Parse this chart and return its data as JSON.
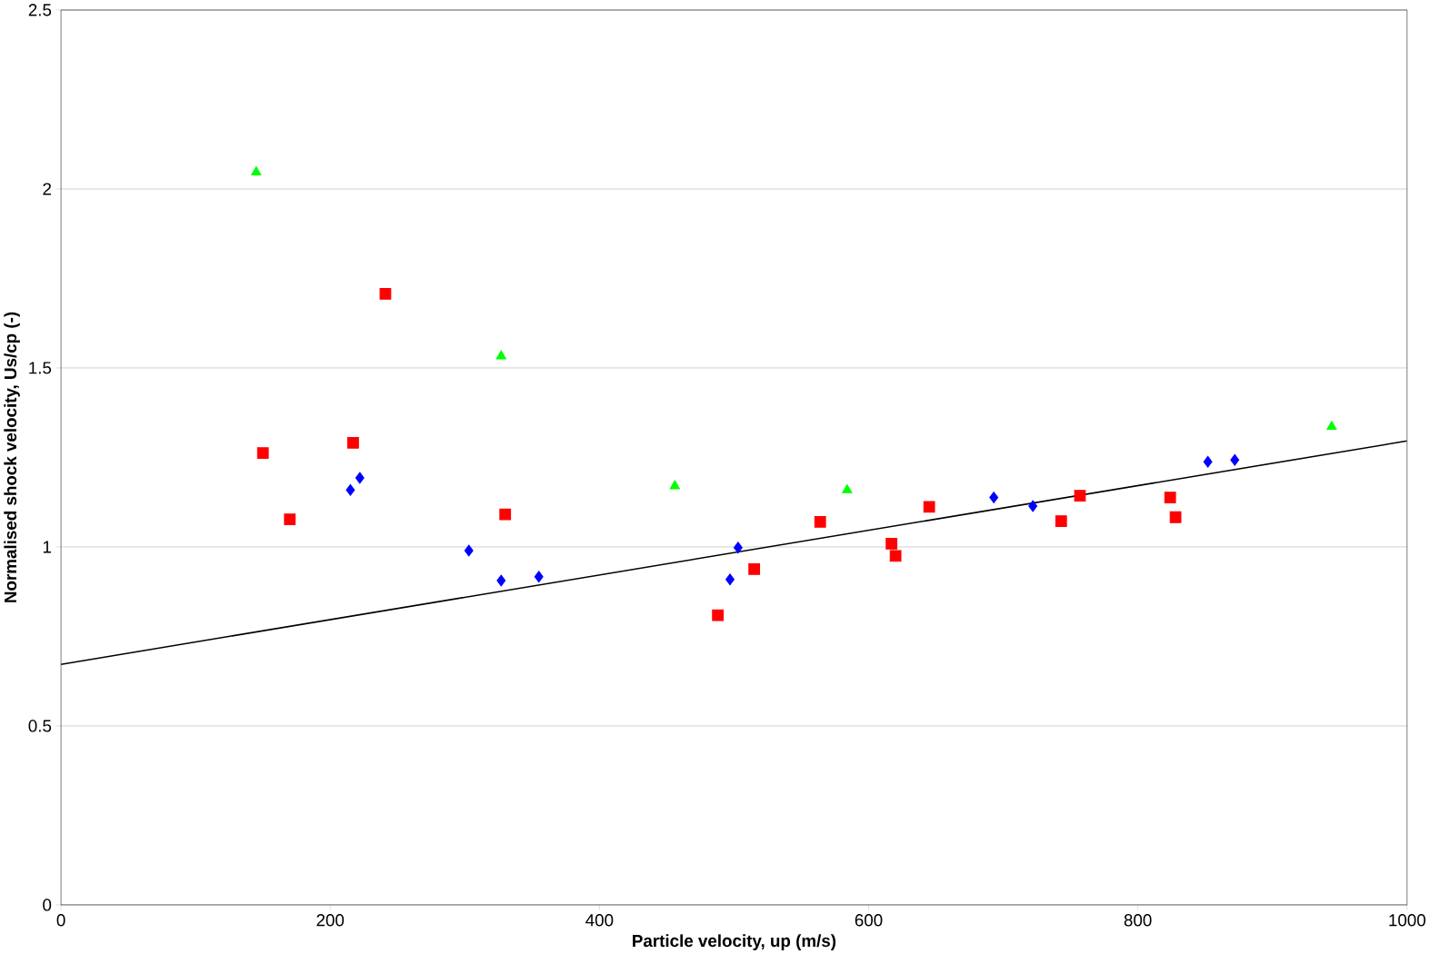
{
  "chart_data": {
    "type": "scatter",
    "xlabel": "Particle velocity, up (m/s)",
    "ylabel": "Normalised shock velocity, Us/cp (-)",
    "xlim": [
      0,
      1000
    ],
    "ylim": [
      0,
      2.5
    ],
    "xticks": [
      0,
      200,
      400,
      600,
      800,
      1000
    ],
    "yticks": [
      0,
      0.5,
      1,
      1.5,
      2,
      2.5
    ],
    "grid": "y",
    "series": [
      {
        "color": "#0000ff",
        "marker": "diamond",
        "x": [
          503,
          693,
          722,
          852,
          872
        ],
        "values": [
          0.998,
          1.138,
          1.114,
          1.238,
          1.243
        ]
      },
      {
        "color": "#ff0000",
        "marker": "square",
        "x": [
          515,
          564,
          617,
          620,
          645,
          743,
          757,
          824,
          828
        ],
        "values": [
          0.938,
          1.07,
          1.009,
          0.975,
          1.112,
          1.072,
          1.143,
          1.138,
          1.083
        ]
      },
      {
        "color": "#00ff00",
        "marker": "triangle",
        "x": [
          584,
          944
        ],
        "values": [
          1.159,
          1.336
        ]
      },
      {
        "color": "#0000ff",
        "marker": "diamond",
        "x": [
          215,
          222,
          303,
          327,
          355,
          497
        ],
        "values": [
          1.159,
          1.193,
          0.99,
          0.906,
          0.917,
          0.909
        ]
      },
      {
        "color": "#ff0000",
        "marker": "square",
        "x": [
          150,
          170,
          217,
          241,
          330,
          488
        ],
        "values": [
          1.262,
          1.077,
          1.291,
          1.707,
          1.091,
          0.809
        ]
      },
      {
        "color": "#00ff00",
        "marker": "triangle",
        "x": [
          145,
          327,
          456
        ],
        "values": [
          2.047,
          1.533,
          1.17
        ]
      },
      {
        "type": "line",
        "color": "#000000",
        "marker": "none",
        "x": [
          0,
          1000
        ],
        "values": [
          0.672,
          1.296
        ]
      }
    ]
  }
}
